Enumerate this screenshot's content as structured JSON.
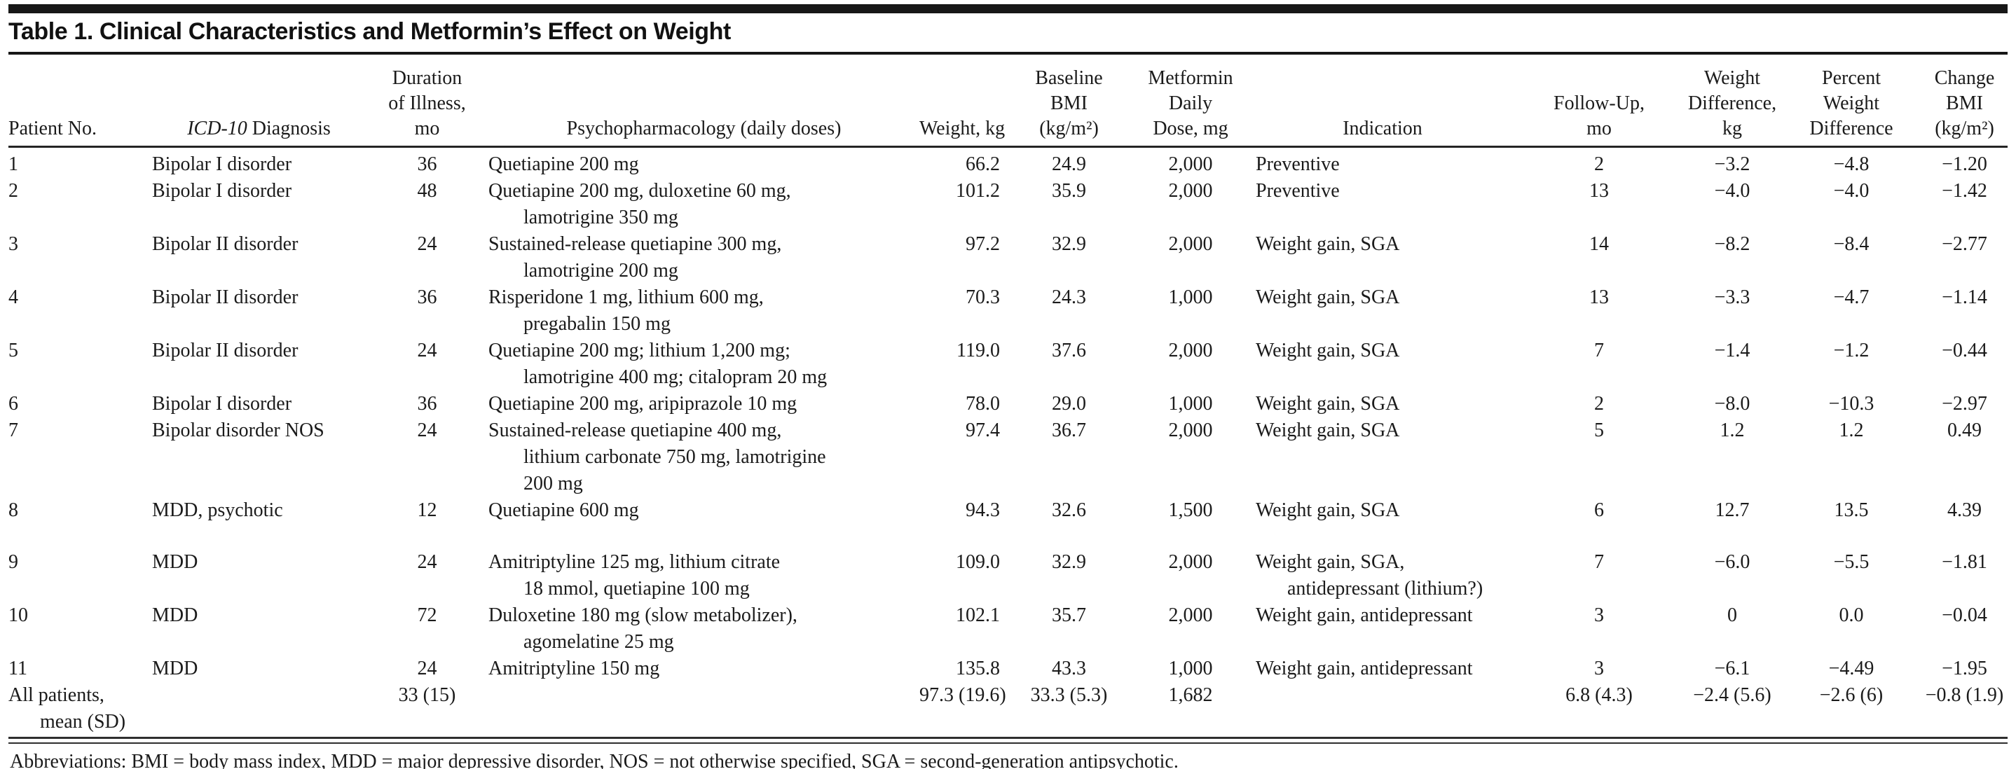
{
  "title": "Table 1. Clinical Characteristics and Metformin’s Effect on Weight",
  "header": {
    "patient": "Patient No.",
    "icd_italic": "ICD-10",
    "icd_rest": " Diagnosis",
    "duration": "Duration\nof Illness,\nmo",
    "psychopharm": "Psychopharmacology (daily doses)",
    "weight": "Weight, kg",
    "bmi": "Baseline\nBMI\n(kg/m²)",
    "dose": "Metformin\nDaily\nDose, mg",
    "indication": "Indication",
    "followup": "Follow-Up,\nmo",
    "wdiff": "Weight\nDifference,\nkg",
    "pctdiff": "Percent\nWeight\nDifference",
    "bmichange": "Change\nBMI\n(kg/m²)"
  },
  "rows": [
    {
      "patient": "1",
      "diagnosis": "Bipolar I disorder",
      "duration": "36",
      "psychopharm": "Quetiapine 200 mg",
      "weight": "66.2",
      "bmi": "24.9",
      "dose": "2,000",
      "indication": "Preventive",
      "followup": "2",
      "wdiff": "−3.2",
      "pctdiff": "−4.8",
      "bmichange": "−1.20"
    },
    {
      "patient": "2",
      "diagnosis": "Bipolar I disorder",
      "duration": "48",
      "psychopharm": "Quetiapine 200 mg, duloxetine 60 mg,\nlamotrigine 350 mg",
      "weight": "101.2",
      "bmi": "35.9",
      "dose": "2,000",
      "indication": "Preventive",
      "followup": "13",
      "wdiff": "−4.0",
      "pctdiff": "−4.0",
      "bmichange": "−1.42"
    },
    {
      "patient": "3",
      "diagnosis": "Bipolar II disorder",
      "duration": "24",
      "psychopharm": "Sustained-release quetiapine 300 mg,\nlamotrigine 200 mg",
      "weight": "97.2",
      "bmi": "32.9",
      "dose": "2,000",
      "indication": "Weight gain, SGA",
      "followup": "14",
      "wdiff": "−8.2",
      "pctdiff": "−8.4",
      "bmichange": "−2.77"
    },
    {
      "patient": "4",
      "diagnosis": "Bipolar II disorder",
      "duration": "36",
      "psychopharm": "Risperidone 1 mg, lithium 600 mg,\npregabalin 150 mg",
      "weight": "70.3",
      "bmi": "24.3",
      "dose": "1,000",
      "indication": "Weight gain, SGA",
      "followup": "13",
      "wdiff": "−3.3",
      "pctdiff": "−4.7",
      "bmichange": "−1.14"
    },
    {
      "patient": "5",
      "diagnosis": "Bipolar II disorder",
      "duration": "24",
      "psychopharm": "Quetiapine 200 mg; lithium 1,200 mg;\nlamotrigine 400 mg; citalopram 20 mg",
      "weight": "119.0",
      "bmi": "37.6",
      "dose": "2,000",
      "indication": "Weight gain, SGA",
      "followup": "7",
      "wdiff": "−1.4",
      "pctdiff": "−1.2",
      "bmichange": "−0.44"
    },
    {
      "patient": "6",
      "diagnosis": "Bipolar I disorder",
      "duration": "36",
      "psychopharm": "Quetiapine 200 mg, aripiprazole 10 mg",
      "weight": "78.0",
      "bmi": "29.0",
      "dose": "1,000",
      "indication": "Weight gain, SGA",
      "followup": "2",
      "wdiff": "−8.0",
      "pctdiff": "−10.3",
      "bmichange": "−2.97"
    },
    {
      "patient": "7",
      "diagnosis": "Bipolar disorder NOS",
      "duration": "24",
      "psychopharm": "Sustained-release quetiapine 400 mg,\nlithium carbonate 750 mg, lamotrigine\n200 mg",
      "weight": "97.4",
      "bmi": "36.7",
      "dose": "2,000",
      "indication": "Weight gain, SGA",
      "followup": "5",
      "wdiff": "1.2",
      "pctdiff": "1.2",
      "bmichange": "0.49"
    },
    {
      "patient": "8",
      "diagnosis": "MDD, psychotic",
      "duration": "12",
      "psychopharm": "Quetiapine 600 mg",
      "weight": "94.3",
      "bmi": "32.6",
      "dose": "1,500",
      "indication": "Weight gain, SGA",
      "followup": "6",
      "wdiff": "12.7",
      "pctdiff": "13.5",
      "bmichange": "4.39",
      "gap_after": true
    },
    {
      "patient": "9",
      "diagnosis": "MDD",
      "duration": "24",
      "psychopharm": "Amitriptyline 125 mg, lithium citrate\n18 mmol, quetiapine 100 mg",
      "weight": "109.0",
      "bmi": "32.9",
      "dose": "2,000",
      "indication": "Weight gain, SGA,\nantidepressant (lithium?)",
      "followup": "7",
      "wdiff": "−6.0",
      "pctdiff": "−5.5",
      "bmichange": "−1.81"
    },
    {
      "patient": "10",
      "diagnosis": "MDD",
      "duration": "72",
      "psychopharm": "Duloxetine 180 mg (slow metabolizer),\nagomelatine 25 mg",
      "weight": "102.1",
      "bmi": "35.7",
      "dose": "2,000",
      "indication": "Weight gain, antidepressant",
      "followup": "3",
      "wdiff": "0",
      "pctdiff": "0.0",
      "bmichange": "−0.04"
    },
    {
      "patient": "11",
      "diagnosis": "MDD",
      "duration": "24",
      "psychopharm": "Amitriptyline 150 mg",
      "weight": "135.8",
      "bmi": "43.3",
      "dose": "1,000",
      "indication": "Weight gain, antidepressant",
      "followup": "3",
      "wdiff": "−6.1",
      "pctdiff": "−4.49",
      "bmichange": "−1.95"
    },
    {
      "patient": "All patients,\nmean (SD)",
      "diagnosis": "",
      "duration": "33 (15)",
      "psychopharm": "",
      "weight": "97.3 (19.6)",
      "bmi": "33.3 (5.3)",
      "dose": "1,682",
      "indication": "",
      "followup": "6.8 (4.3)",
      "wdiff": "−2.4 (5.6)",
      "pctdiff": "−2.6 (6)",
      "bmichange": "−0.8 (1.9)"
    }
  ],
  "footnote": "Abbreviations: BMI = body mass index, MDD = major depressive disorder, NOS = not otherwise specified, SGA = second-generation antipsychotic.",
  "colors": {
    "rule": "#2e2e2e",
    "top_bar": "#171717",
    "text": "#1b1b1b"
  }
}
